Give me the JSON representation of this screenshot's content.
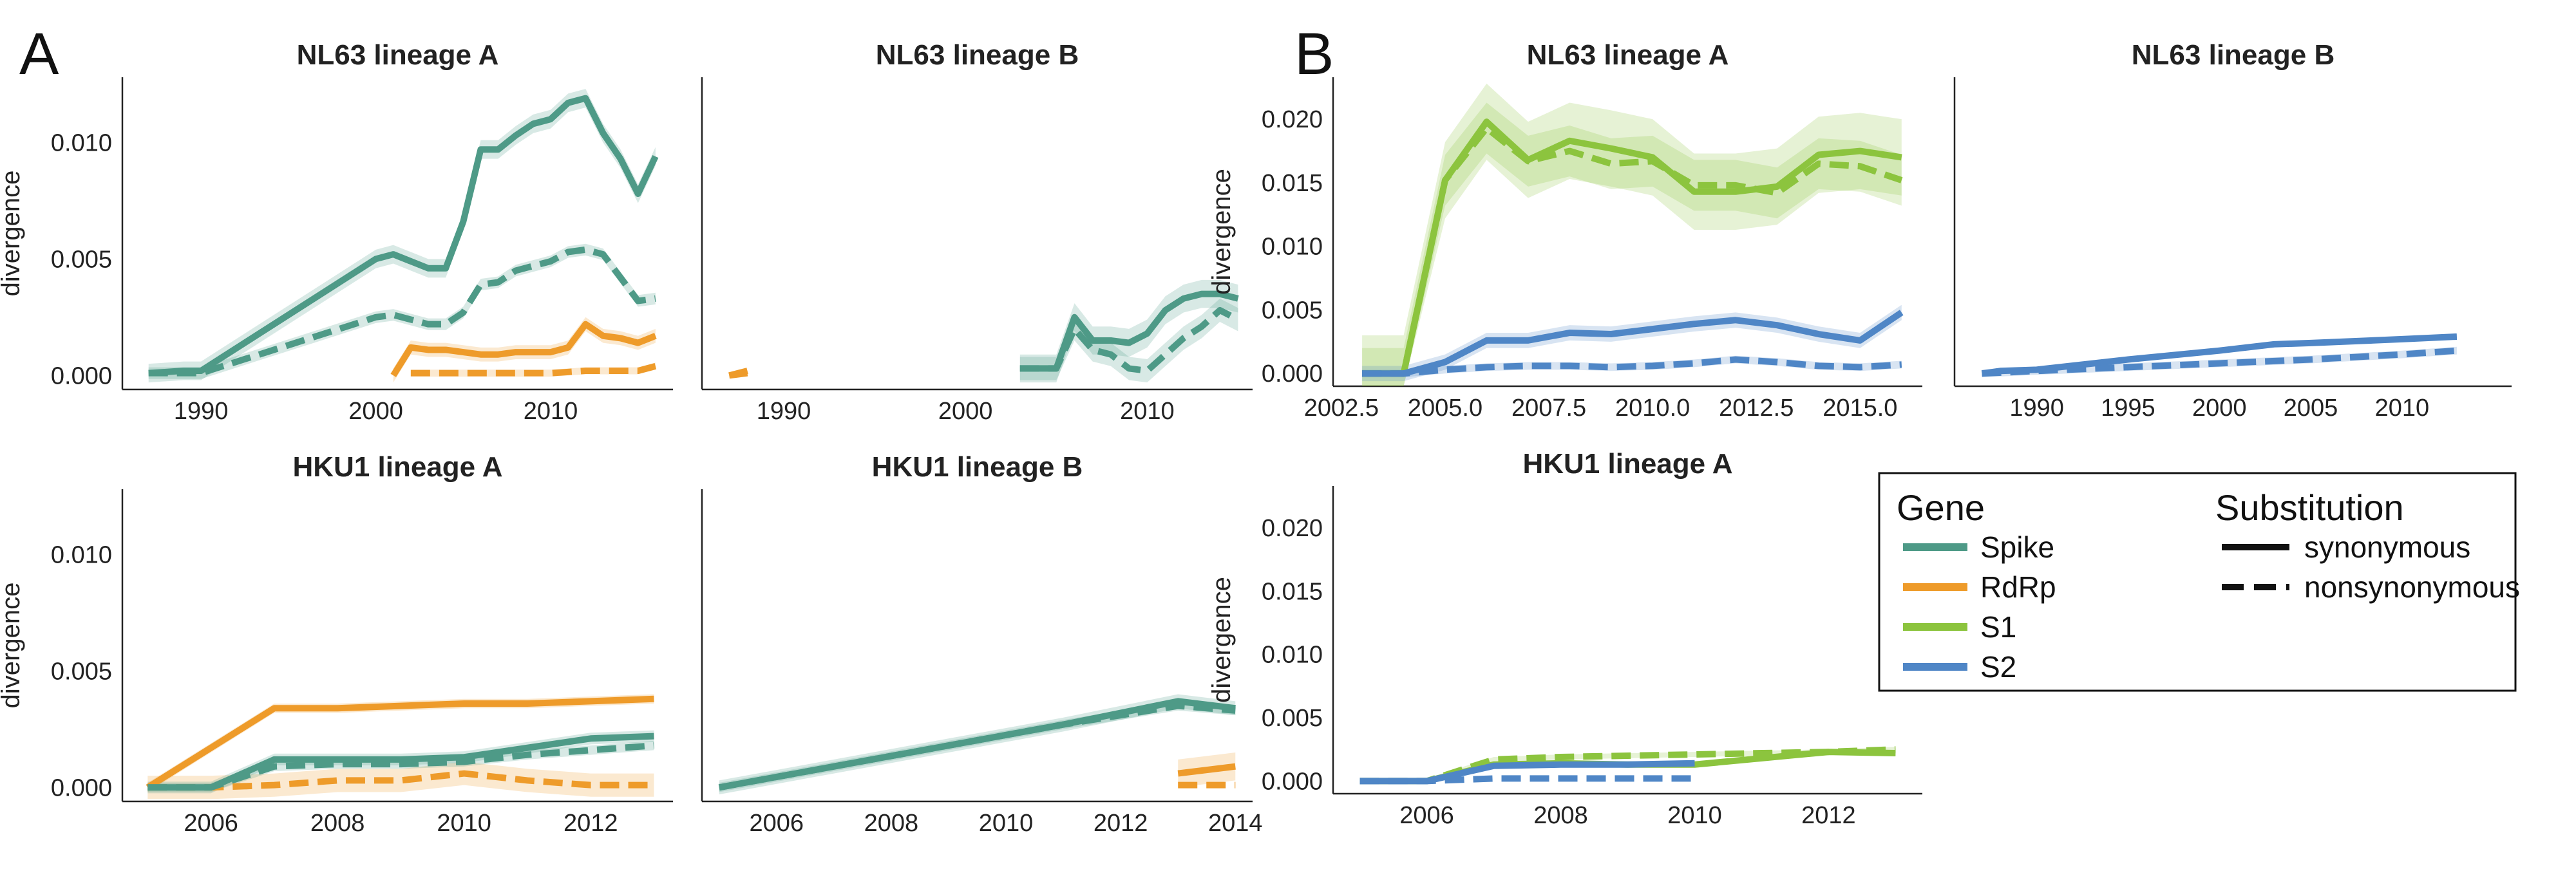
{
  "figure": {
    "panel_letters": [
      "A",
      "B"
    ]
  },
  "legend": {
    "gene_title": "Gene",
    "substitution_title": "Substitution",
    "genes": [
      {
        "name": "Spike",
        "color": "#4E9A87"
      },
      {
        "name": "RdRp",
        "color": "#EE9B2A"
      },
      {
        "name": "S1",
        "color": "#8CC43E"
      },
      {
        "name": "S2",
        "color": "#4F86C6"
      }
    ],
    "substitutions": [
      {
        "name": "synonymous",
        "style": "solid"
      },
      {
        "name": "nonsynonymous",
        "style": "dashed"
      }
    ]
  },
  "colors": {
    "Spike": "#4E9A87",
    "RdRp": "#EE9B2A",
    "S1": "#8CC43E",
    "S2": "#4F86C6"
  },
  "chart_data": [
    {
      "type": "line",
      "panel": "A",
      "title": "NL63 lineage A",
      "ylabel": "divergence",
      "xlim": [
        1985.5,
        2017
      ],
      "ylim": [
        -0.0006,
        0.0128
      ],
      "xticks": [
        1990,
        2000,
        2010
      ],
      "xtick_labels": [
        "1990",
        "2000",
        "2010"
      ],
      "yticks": [
        0,
        0.005,
        0.01
      ],
      "ytick_labels": [
        "0.000",
        "0.005",
        "0.010"
      ],
      "series": [
        {
          "gene": "Spike",
          "style": "solid",
          "band": 0.0004,
          "x": [
            1987,
            1989,
            1990,
            2000,
            2001,
            2003,
            2004,
            2005,
            2006,
            2007,
            2008,
            2009,
            2010,
            2011,
            2012,
            2013,
            2014,
            2015,
            2016
          ],
          "y": [
            0.0001,
            0.0002,
            0.0002,
            0.005,
            0.0052,
            0.0046,
            0.0046,
            0.0066,
            0.0097,
            0.0097,
            0.0103,
            0.0108,
            0.011,
            0.0117,
            0.0119,
            0.0104,
            0.0093,
            0.0078,
            0.0094
          ]
        },
        {
          "gene": "Spike",
          "style": "dashed",
          "band": 0.00025,
          "x": [
            1987,
            1989,
            1990,
            2000,
            2001,
            2002,
            2003,
            2004,
            2005,
            2006,
            2007,
            2008,
            2009,
            2010,
            2011,
            2012,
            2013,
            2014,
            2015,
            2016
          ],
          "y": [
            0.0001,
            0.0001,
            0.0001,
            0.0025,
            0.0026,
            0.0024,
            0.0022,
            0.0022,
            0.0027,
            0.0039,
            0.004,
            0.0045,
            0.0047,
            0.0049,
            0.0053,
            0.0054,
            0.0052,
            0.0042,
            0.0032,
            0.0033
          ]
        },
        {
          "gene": "RdRp",
          "style": "solid",
          "band": 0.0003,
          "x": [
            2001,
            2002,
            2003,
            2004,
            2005,
            2006,
            2007,
            2008,
            2009,
            2010,
            2011,
            2012,
            2013,
            2014,
            2015,
            2016
          ],
          "y": [
            0.0,
            0.0012,
            0.0011,
            0.0011,
            0.001,
            0.0009,
            0.0009,
            0.001,
            0.001,
            0.001,
            0.0012,
            0.0022,
            0.0017,
            0.0016,
            0.0014,
            0.0017
          ]
        },
        {
          "gene": "RdRp",
          "style": "dashed",
          "band": 0.00015,
          "x": [
            2002,
            2004,
            2006,
            2008,
            2010,
            2012,
            2014,
            2015,
            2016
          ],
          "y": [
            0.0001,
            0.0001,
            0.0001,
            0.0001,
            0.0001,
            0.0002,
            0.0002,
            0.0002,
            0.0004
          ]
        }
      ]
    },
    {
      "type": "line",
      "panel": "A",
      "title": "NL63 lineage B",
      "ylabel": "",
      "xlim": [
        1985.5,
        2015.8
      ],
      "ylim": [
        -0.0006,
        0.0128
      ],
      "xticks": [
        1990,
        2000,
        2010
      ],
      "xtick_labels": [
        "1990",
        "2000",
        "2010"
      ],
      "yticks": [],
      "ytick_labels": [],
      "series": [
        {
          "gene": "RdRp",
          "style": "solid",
          "band": 0,
          "x": [
            1987,
            1988
          ],
          "y": [
            0.0,
            0.0002
          ]
        },
        {
          "gene": "RdRp",
          "style": "dashed",
          "band": 0,
          "x": [
            1987,
            1988
          ],
          "y": [
            0.0,
            0.0001
          ]
        },
        {
          "gene": "Spike",
          "style": "solid",
          "band": 0.0006,
          "x": [
            2003,
            2005,
            2006,
            2007,
            2008,
            2009,
            2010,
            2011,
            2012,
            2013,
            2014,
            2015
          ],
          "y": [
            0.0003,
            0.0003,
            0.0025,
            0.0015,
            0.0015,
            0.0014,
            0.0018,
            0.0028,
            0.0033,
            0.0035,
            0.0035,
            0.0033
          ]
        },
        {
          "gene": "Spike",
          "style": "dashed",
          "band": 0.0005,
          "x": [
            2003,
            2005,
            2006,
            2007,
            2008,
            2009,
            2010,
            2011,
            2012,
            2013,
            2014,
            2015
          ],
          "y": [
            0.0003,
            0.0003,
            0.002,
            0.0011,
            0.0009,
            0.0003,
            0.0002,
            0.0009,
            0.0016,
            0.0021,
            0.0028,
            0.0024
          ]
        }
      ]
    },
    {
      "type": "line",
      "panel": "A",
      "title": "HKU1 lineage A",
      "ylabel": "divergence",
      "xlim": [
        2004.6,
        2013.3
      ],
      "ylim": [
        -0.0006,
        0.0128
      ],
      "xticks": [
        2006,
        2008,
        2010,
        2012
      ],
      "xtick_labels": [
        "2006",
        "2008",
        "2010",
        "2012"
      ],
      "yticks": [
        0,
        0.005,
        0.01
      ],
      "ytick_labels": [
        "0.000",
        "0.005",
        "0.010"
      ],
      "series": [
        {
          "gene": "RdRp",
          "style": "solid",
          "band": 0.0002,
          "x": [
            2005,
            2007,
            2008,
            2009,
            2010,
            2011,
            2012,
            2013
          ],
          "y": [
            0.0,
            0.0034,
            0.0034,
            0.0035,
            0.0036,
            0.0036,
            0.0037,
            0.0038
          ]
        },
        {
          "gene": "RdRp",
          "style": "dashed",
          "band": 0.0005,
          "x": [
            2005,
            2006,
            2007,
            2008,
            2009,
            2010,
            2011,
            2012,
            2013
          ],
          "y": [
            0.0,
            0.0,
            0.0001,
            0.0003,
            0.0003,
            0.0006,
            0.0003,
            0.0001,
            0.0001
          ]
        },
        {
          "gene": "Spike",
          "style": "solid",
          "band": 0.00025,
          "x": [
            2005,
            2006,
            2007,
            2008,
            2009,
            2010,
            2011,
            2012,
            2013
          ],
          "y": [
            0.0,
            0.0,
            0.0012,
            0.0012,
            0.0012,
            0.0013,
            0.0017,
            0.0021,
            0.0022
          ]
        },
        {
          "gene": "Spike",
          "style": "dashed",
          "band": 0.0002,
          "x": [
            2005,
            2006,
            2007,
            2008,
            2009,
            2010,
            2011,
            2012,
            2013
          ],
          "y": [
            0.0,
            0.0,
            0.0009,
            0.001,
            0.001,
            0.0011,
            0.0014,
            0.0016,
            0.0018
          ]
        }
      ]
    },
    {
      "type": "line",
      "panel": "A",
      "title": "HKU1 lineage B",
      "ylabel": "",
      "xlim": [
        2004.7,
        2014.3
      ],
      "ylim": [
        -0.0006,
        0.0128
      ],
      "xticks": [
        2006,
        2008,
        2010,
        2012,
        2014
      ],
      "xtick_labels": [
        "2006",
        "2008",
        "2010",
        "2012",
        "2014"
      ],
      "yticks": [],
      "ytick_labels": [],
      "series": [
        {
          "gene": "Spike",
          "style": "solid",
          "band": 0.0003,
          "x": [
            2005,
            2007,
            2009,
            2011,
            2012,
            2013,
            2014
          ],
          "y": [
            0.0,
            0.0009,
            0.0018,
            0.0027,
            0.0032,
            0.0037,
            0.0034
          ]
        },
        {
          "gene": "Spike",
          "style": "dashed",
          "band": 0.0002,
          "x": [
            2005,
            2007,
            2009,
            2011,
            2013,
            2014
          ],
          "y": [
            0.0,
            0.0009,
            0.0018,
            0.0027,
            0.0035,
            0.0033
          ]
        },
        {
          "gene": "RdRp",
          "style": "solid",
          "band": 0.0006,
          "x": [
            2013,
            2014
          ],
          "y": [
            0.0006,
            0.0009
          ]
        },
        {
          "gene": "RdRp",
          "style": "dashed",
          "band": 0,
          "x": [
            2013,
            2014
          ],
          "y": [
            0.0001,
            0.0001
          ]
        }
      ]
    },
    {
      "type": "line",
      "panel": "B",
      "title": "NL63 lineage A",
      "ylabel": "divergence",
      "xlim": [
        2002.3,
        2016.5
      ],
      "ylim": [
        -0.001,
        0.0233
      ],
      "xticks": [
        2002.5,
        2005,
        2007.5,
        2010,
        2012.5,
        2015
      ],
      "xtick_labels": [
        "2002.5",
        "2005.0",
        "2007.5",
        "2010.0",
        "2012.5",
        "2015.0"
      ],
      "yticks": [
        0,
        0.005,
        0.01,
        0.015,
        0.02
      ],
      "ytick_labels": [
        "0.000",
        "0.005",
        "0.010",
        "0.015",
        "0.020"
      ],
      "series": [
        {
          "gene": "S1",
          "style": "solid",
          "band": 0.003,
          "x": [
            2003,
            2004,
            2005,
            2006,
            2007,
            2008,
            2009,
            2010,
            2011,
            2012,
            2013,
            2014,
            2015,
            2016
          ],
          "y": [
            0.0,
            0.0,
            0.0152,
            0.0198,
            0.0168,
            0.0183,
            0.0177,
            0.017,
            0.0143,
            0.0143,
            0.0147,
            0.0172,
            0.0175,
            0.017
          ]
        },
        {
          "gene": "S1",
          "style": "dashed",
          "band": 0.002,
          "x": [
            2003,
            2004,
            2005,
            2006,
            2007,
            2008,
            2009,
            2010,
            2011,
            2012,
            2013,
            2014,
            2015,
            2016
          ],
          "y": [
            0.0,
            0.0,
            0.0152,
            0.0193,
            0.0167,
            0.0175,
            0.0165,
            0.0167,
            0.0148,
            0.0148,
            0.0142,
            0.0165,
            0.0163,
            0.0152
          ]
        },
        {
          "gene": "S2",
          "style": "solid",
          "band": 0.0006,
          "x": [
            2003,
            2004,
            2005,
            2006,
            2007,
            2008,
            2009,
            2010,
            2011,
            2012,
            2013,
            2014,
            2015,
            2016
          ],
          "y": [
            0.0,
            0.0,
            0.0009,
            0.0026,
            0.0026,
            0.0032,
            0.0031,
            0.0035,
            0.0039,
            0.0042,
            0.0038,
            0.0031,
            0.0026,
            0.0048
          ]
        },
        {
          "gene": "S2",
          "style": "dashed",
          "band": 0.0003,
          "x": [
            2003,
            2004,
            2005,
            2006,
            2007,
            2008,
            2009,
            2010,
            2011,
            2012,
            2013,
            2014,
            2015,
            2016
          ],
          "y": [
            0.0,
            0.0,
            0.0003,
            0.0005,
            0.0006,
            0.0006,
            0.0005,
            0.0006,
            0.0008,
            0.0011,
            0.0009,
            0.0006,
            0.0005,
            0.0007
          ]
        }
      ]
    },
    {
      "type": "line",
      "panel": "B",
      "title": "NL63 lineage B",
      "ylabel": "",
      "xlim": [
        1985.5,
        2016
      ],
      "ylim": [
        -0.001,
        0.0233
      ],
      "xticks": [
        1990,
        1995,
        2000,
        2005,
        2010
      ],
      "xtick_labels": [
        "1990",
        "1995",
        "2000",
        "2005",
        "2010"
      ],
      "yticks": [],
      "ytick_labels": [],
      "series": [
        {
          "gene": "S2",
          "style": "solid",
          "band": 0.0002,
          "x": [
            1987,
            1988,
            1990,
            1995,
            2000,
            2003,
            2005,
            2010,
            2013
          ],
          "y": [
            0.0,
            0.0002,
            0.0003,
            0.0011,
            0.0018,
            0.0023,
            0.0024,
            0.0027,
            0.0029
          ]
        },
        {
          "gene": "S2",
          "style": "dashed",
          "band": 0.0003,
          "x": [
            1987,
            1990,
            1995,
            2000,
            2005,
            2010,
            2013
          ],
          "y": [
            0.0,
            0.0002,
            0.0005,
            0.0008,
            0.0011,
            0.0015,
            0.0018
          ]
        }
      ]
    },
    {
      "type": "line",
      "panel": "B",
      "title": "HKU1 lineage A",
      "ylabel": "divergence",
      "xlim": [
        2004.6,
        2013.4
      ],
      "ylim": [
        -0.001,
        0.0233
      ],
      "xticks": [
        2006,
        2008,
        2010,
        2012
      ],
      "xtick_labels": [
        "2006",
        "2008",
        "2010",
        "2012"
      ],
      "yticks": [
        0,
        0.005,
        0.01,
        0.015,
        0.02
      ],
      "ytick_labels": [
        "0.000",
        "0.005",
        "0.010",
        "0.015",
        "0.020"
      ],
      "series": [
        {
          "gene": "S1",
          "style": "solid",
          "band": 0.0002,
          "x": [
            2005,
            2006,
            2007,
            2008,
            2009,
            2010,
            2011,
            2012,
            2013
          ],
          "y": [
            0.0,
            0.0,
            0.0013,
            0.0014,
            0.0013,
            0.0013,
            0.0018,
            0.0023,
            0.0022
          ]
        },
        {
          "gene": "S1",
          "style": "dashed",
          "band": 0.0002,
          "x": [
            2005,
            2006,
            2007,
            2008,
            2009,
            2010,
            2011,
            2012,
            2013
          ],
          "y": [
            0.0,
            0.0,
            0.0017,
            0.0019,
            0.002,
            0.0021,
            0.0022,
            0.0023,
            0.0025
          ]
        },
        {
          "gene": "S2",
          "style": "solid",
          "band": 0.0002,
          "x": [
            2005,
            2006,
            2007,
            2008,
            2009,
            2010
          ],
          "y": [
            0.0,
            0.0,
            0.0012,
            0.0013,
            0.0013,
            0.0014
          ]
        },
        {
          "gene": "S2",
          "style": "dashed",
          "band": 0,
          "x": [
            2005,
            2006,
            2007,
            2008,
            2009,
            2010
          ],
          "y": [
            0.0,
            0.0,
            0.0002,
            0.0002,
            0.0002,
            0.0002
          ]
        }
      ]
    }
  ]
}
